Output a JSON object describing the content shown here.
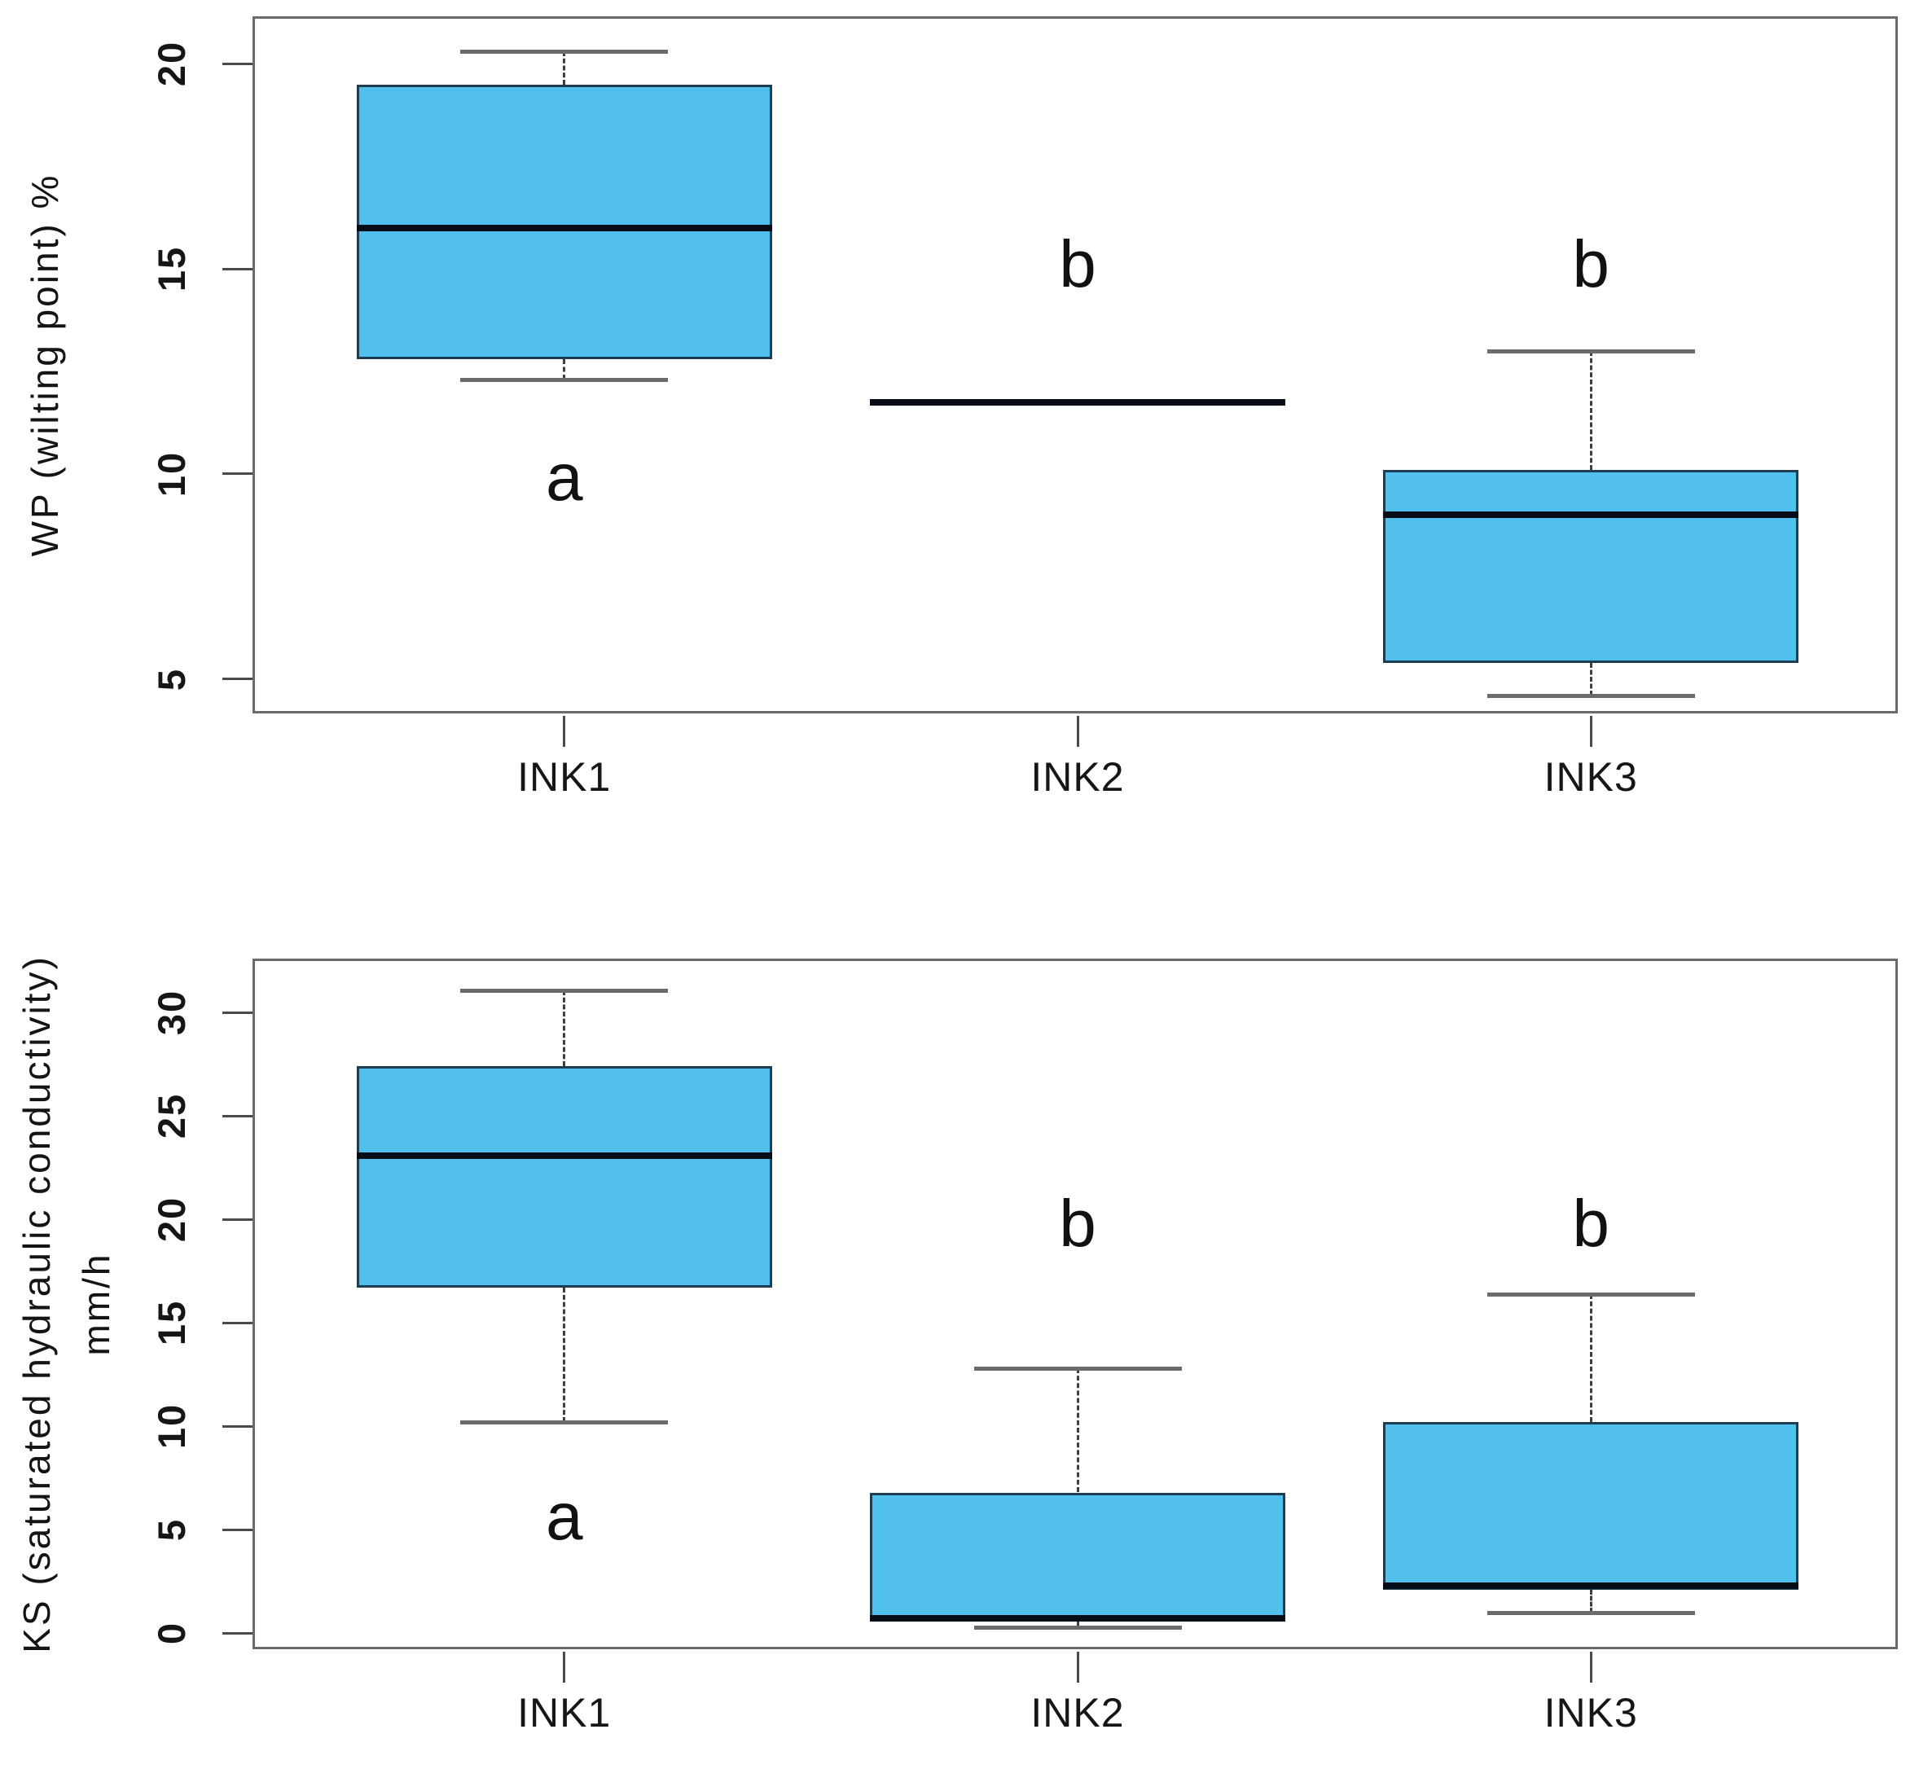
{
  "figure": {
    "background": "#ffffff",
    "description": "Two stacked single-series boxplot panels comparing soil properties of three inks"
  },
  "style": {
    "box_fill": "#52c0ed",
    "box_border": "#1e3d50",
    "median_color": "#070d16",
    "whisker_cap_color": "#6b6b6b",
    "whisker_stem_color": "#3f3f3f",
    "frame_color": "#6a6a6a",
    "tick_color": "#4a4a4a",
    "text_color": "#161616"
  },
  "chart_data": [
    {
      "type": "boxplot",
      "title": "",
      "ylabel": "WP (wilting point) %",
      "ylabel_line2": "",
      "xlabel": "",
      "categories": [
        "INK1",
        "INK2",
        "INK3"
      ],
      "yticks": [
        5,
        10,
        15,
        20
      ],
      "ylim": [
        4.1,
        21.1
      ],
      "grid": false,
      "legend": "none",
      "series": [
        {
          "category": "INK1",
          "low": 12.3,
          "q1": 12.8,
          "median": 16.0,
          "q3": 19.5,
          "high": 20.3,
          "sig_letter": "a",
          "letter_y": 9.8,
          "flat": false
        },
        {
          "category": "INK2",
          "low": 11.7,
          "q1": 11.7,
          "median": 11.75,
          "q3": 11.8,
          "high": 11.8,
          "sig_letter": "b",
          "letter_y": 15.0,
          "flat": true
        },
        {
          "category": "INK3",
          "low": 4.6,
          "q1": 5.4,
          "median": 9.0,
          "q3": 10.1,
          "high": 13.0,
          "sig_letter": "b",
          "letter_y": 15.0,
          "flat": false
        }
      ]
    },
    {
      "type": "boxplot",
      "title": "",
      "ylabel": "KS (saturated hydraulic conductivity)",
      "ylabel_line2": "mm/h",
      "xlabel": "",
      "categories": [
        "INK1",
        "INK2",
        "INK3"
      ],
      "yticks": [
        0,
        5,
        10,
        15,
        20,
        25,
        30
      ],
      "ylim": [
        -0.9,
        32.5
      ],
      "grid": false,
      "legend": "none",
      "series": [
        {
          "category": "INK1",
          "low": 10.2,
          "q1": 16.7,
          "median": 23.1,
          "q3": 27.4,
          "high": 31.1,
          "sig_letter": "a",
          "letter_y": 5.4,
          "flat": false
        },
        {
          "category": "INK2",
          "low": 0.3,
          "q1": 0.55,
          "median": 0.7,
          "q3": 6.8,
          "high": 12.8,
          "sig_letter": "b",
          "letter_y": 19.6,
          "flat": false
        },
        {
          "category": "INK3",
          "low": 1.0,
          "q1": 2.1,
          "median": 2.3,
          "q3": 10.2,
          "high": 16.4,
          "sig_letter": "b",
          "letter_y": 19.6,
          "flat": false
        }
      ]
    }
  ]
}
